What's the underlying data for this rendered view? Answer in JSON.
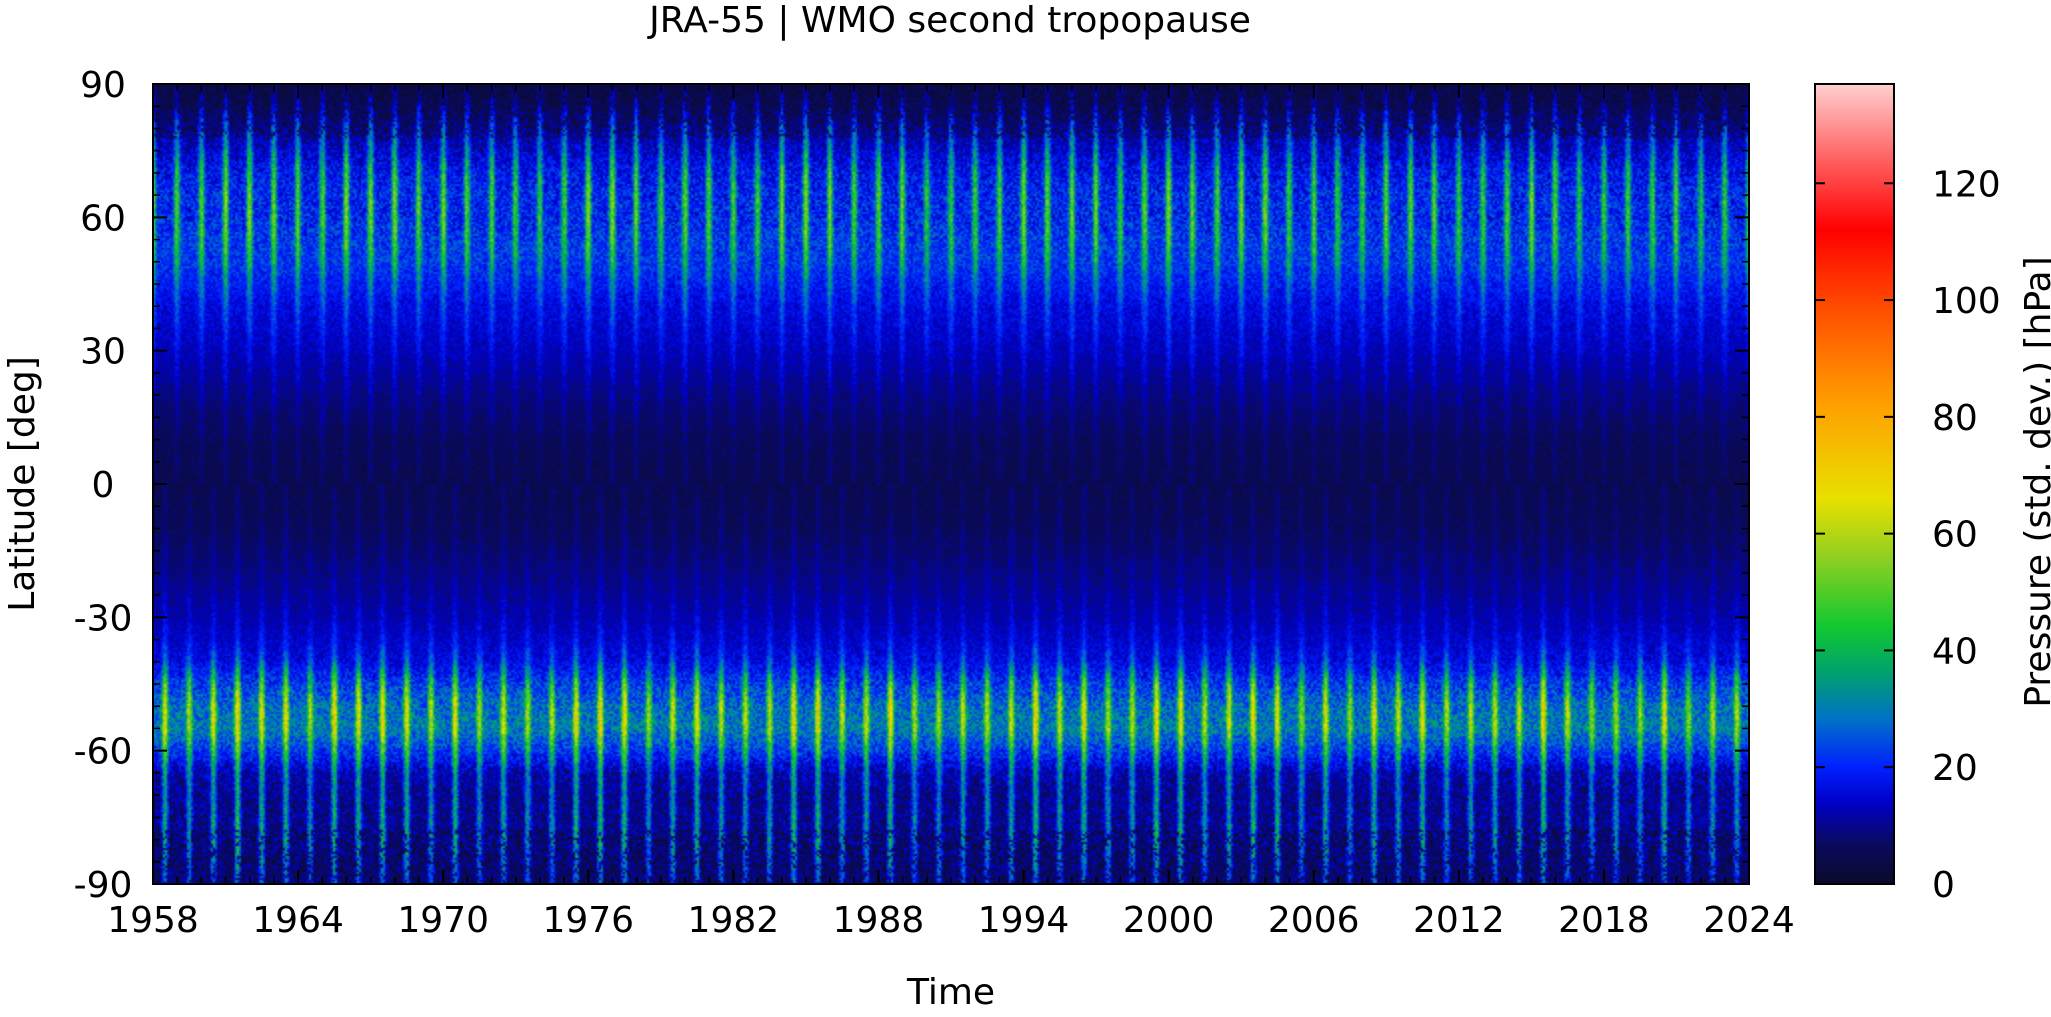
{
  "chart_data": {
    "type": "heatmap",
    "title": "JRA-55 | WMO second tropopause",
    "xlabel": "Time",
    "ylabel": "Latitude [deg]",
    "colorbar_label": "Pressure (std. dev.) [hPa]",
    "xlim": [
      1958,
      2024
    ],
    "ylim": [
      -90,
      90
    ],
    "x_ticks": [
      1958,
      1964,
      1970,
      1976,
      1982,
      1988,
      1994,
      2000,
      2006,
      2012,
      2018,
      2024
    ],
    "x_tick_labels": [
      "1958",
      "1964",
      "1970",
      "1976",
      "1982",
      "1988",
      "1994",
      "2000",
      "2006",
      "2012",
      "2018",
      "2024"
    ],
    "y_ticks": [
      -90,
      -60,
      -30,
      0,
      30,
      60,
      90
    ],
    "y_tick_labels": [
      "-90",
      "-60",
      "-30",
      "0",
      "30",
      "60",
      "90"
    ],
    "color_range": [
      0,
      137
    ],
    "color_ticks": [
      0,
      20,
      40,
      60,
      80,
      100,
      120
    ],
    "color_tick_labels": [
      "0",
      "20",
      "40",
      "60",
      "80",
      "100",
      "120"
    ],
    "colormap": [
      {
        "value": 0,
        "color": "#0a0a2a"
      },
      {
        "value": 7,
        "color": "#0a0a60"
      },
      {
        "value": 14,
        "color": "#0000c8"
      },
      {
        "value": 20,
        "color": "#0020ff"
      },
      {
        "value": 28,
        "color": "#0070c8"
      },
      {
        "value": 36,
        "color": "#00a070"
      },
      {
        "value": 44,
        "color": "#10c830"
      },
      {
        "value": 56,
        "color": "#90d020"
      },
      {
        "value": 66,
        "color": "#e8e000"
      },
      {
        "value": 82,
        "color": "#ffa000"
      },
      {
        "value": 98,
        "color": "#ff5000"
      },
      {
        "value": 112,
        "color": "#ff0000"
      },
      {
        "value": 124,
        "color": "#ff6060"
      },
      {
        "value": 137,
        "color": "#ffd0d0"
      }
    ],
    "seasonal_period_years": 1,
    "latitude_profile": [
      {
        "lat": -90,
        "base": 8,
        "amp": 18
      },
      {
        "lat": -85,
        "base": 9,
        "amp": 22
      },
      {
        "lat": -80,
        "base": 10,
        "amp": 26
      },
      {
        "lat": -75,
        "base": 10,
        "amp": 26
      },
      {
        "lat": -70,
        "base": 10,
        "amp": 24
      },
      {
        "lat": -65,
        "base": 12,
        "amp": 24
      },
      {
        "lat": -60,
        "base": 22,
        "amp": 26
      },
      {
        "lat": -55,
        "base": 30,
        "amp": 34
      },
      {
        "lat": -50,
        "base": 28,
        "amp": 36
      },
      {
        "lat": -45,
        "base": 22,
        "amp": 30
      },
      {
        "lat": -40,
        "base": 16,
        "amp": 14
      },
      {
        "lat": -35,
        "base": 14,
        "amp": 6
      },
      {
        "lat": -30,
        "base": 12,
        "amp": 4
      },
      {
        "lat": -20,
        "base": 9,
        "amp": 3
      },
      {
        "lat": -10,
        "base": 6,
        "amp": 3
      },
      {
        "lat": 0,
        "base": 5,
        "amp": 3
      },
      {
        "lat": 10,
        "base": 6,
        "amp": 3
      },
      {
        "lat": 20,
        "base": 9,
        "amp": 4
      },
      {
        "lat": 30,
        "base": 13,
        "amp": 5
      },
      {
        "lat": 40,
        "base": 16,
        "amp": 10
      },
      {
        "lat": 45,
        "base": 19,
        "amp": 14
      },
      {
        "lat": 50,
        "base": 22,
        "amp": 20
      },
      {
        "lat": 55,
        "base": 22,
        "amp": 26
      },
      {
        "lat": 60,
        "base": 20,
        "amp": 30
      },
      {
        "lat": 65,
        "base": 20,
        "amp": 30
      },
      {
        "lat": 70,
        "base": 18,
        "amp": 28
      },
      {
        "lat": 75,
        "base": 14,
        "amp": 22
      },
      {
        "lat": 80,
        "base": 10,
        "amp": 18
      },
      {
        "lat": 85,
        "base": 6,
        "amp": 10
      },
      {
        "lat": 90,
        "base": 4,
        "amp": 5
      }
    ],
    "grid": false
  }
}
